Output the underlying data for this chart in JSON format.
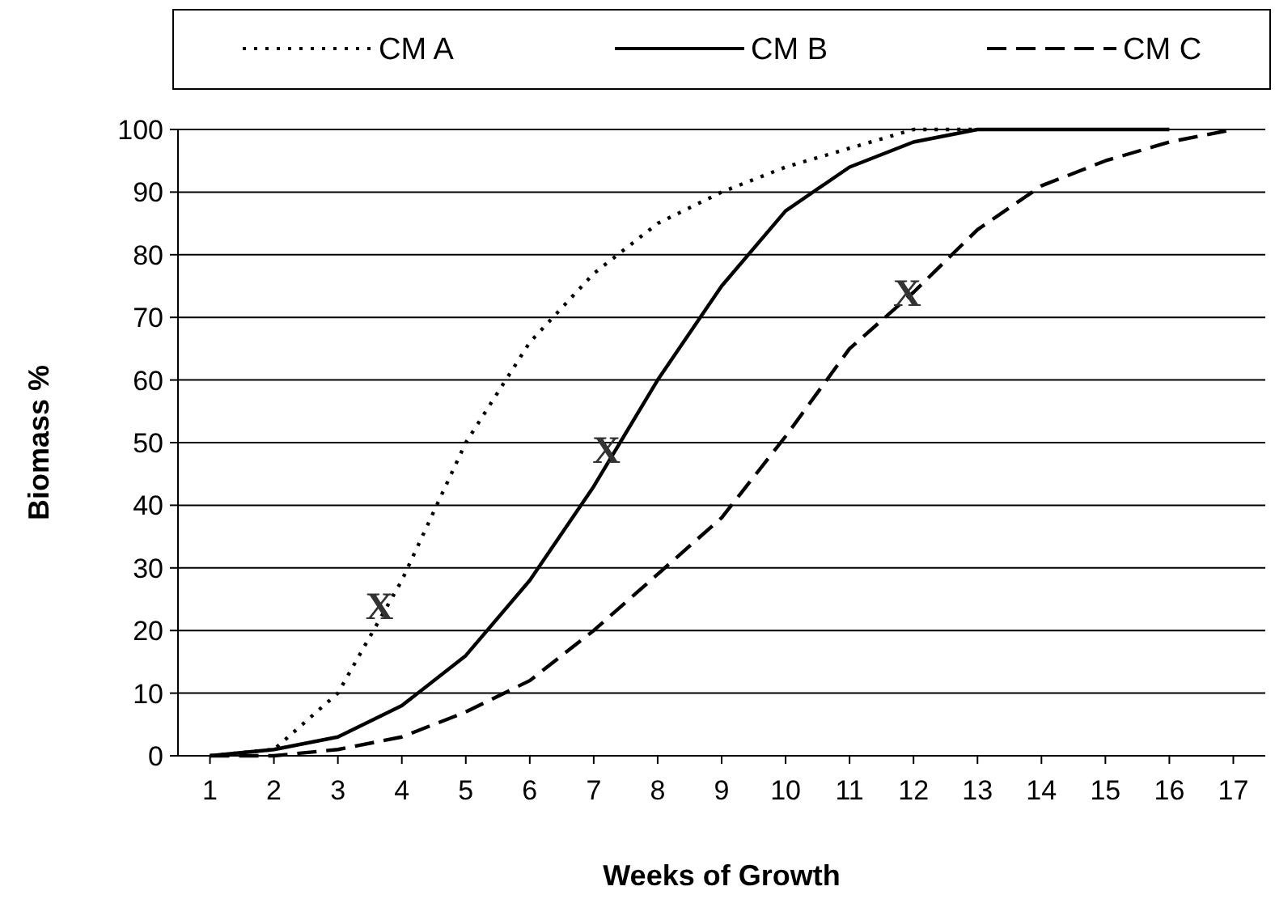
{
  "chart_data": {
    "type": "line",
    "xlabel": "Weeks of Growth",
    "ylabel": "Biomass %",
    "x": [
      1,
      2,
      3,
      4,
      5,
      6,
      7,
      8,
      9,
      10,
      11,
      12,
      13,
      14,
      15,
      16,
      17
    ],
    "xlim": [
      0.5,
      17.5
    ],
    "xticks": [
      1,
      2,
      3,
      4,
      5,
      6,
      7,
      8,
      9,
      10,
      11,
      12,
      13,
      14,
      15,
      16,
      17
    ],
    "ylim": [
      0,
      100
    ],
    "yticks": [
      0,
      10,
      20,
      30,
      40,
      50,
      60,
      70,
      80,
      90,
      100
    ],
    "grid": "y",
    "legend": "top",
    "marker": "none",
    "series": [
      {
        "name": "CM A",
        "color": "#000000",
        "line_style": "dotted",
        "values": [
          0,
          1,
          10,
          28,
          50,
          66,
          77,
          85,
          90,
          94,
          97,
          100,
          100,
          null,
          null,
          null,
          null
        ]
      },
      {
        "name": "CM B",
        "color": "#000000",
        "line_style": "solid",
        "values": [
          0,
          1,
          3,
          8,
          16,
          28,
          43,
          60,
          75,
          87,
          94,
          98,
          100,
          100,
          100,
          100,
          null
        ]
      },
      {
        "name": "CM C",
        "color": "#000000",
        "line_style": "dashed",
        "values": [
          0,
          0,
          1,
          3,
          7,
          12,
          20,
          29,
          38,
          51,
          65,
          74,
          84,
          91,
          95,
          98,
          100
        ]
      }
    ],
    "annotations": [
      {
        "text": "X",
        "x": 3.65,
        "y": 24
      },
      {
        "text": "X",
        "x": 7.2,
        "y": 49
      },
      {
        "text": "X",
        "x": 11.9,
        "y": 74
      }
    ]
  }
}
